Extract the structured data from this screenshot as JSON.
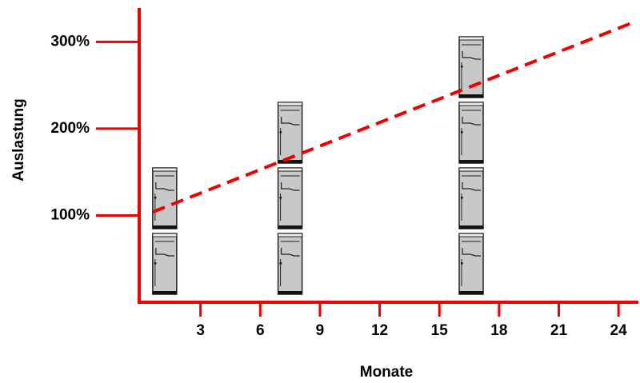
{
  "chart_data": {
    "type": "line",
    "xlabel": "Monate",
    "ylabel": "Auslastung",
    "xlim": [
      0,
      25
    ],
    "ylim": [
      0,
      339
    ],
    "xticks": [
      3,
      6,
      9,
      12,
      15,
      18,
      21,
      24
    ],
    "yticks": [
      {
        "value": 100,
        "label": "100%"
      },
      {
        "value": 200,
        "label": "200%"
      },
      {
        "value": 300,
        "label": "300%"
      }
    ],
    "axis_color": "#ee0000",
    "series": [
      {
        "color": "#ee0000",
        "x": [
          0.6,
          24.7
        ],
        "values": [
          104,
          322
        ]
      }
    ],
    "server_stacks": {
      "x": [
        1.2,
        7.5,
        16.6
      ],
      "counts": [
        2,
        3,
        4
      ]
    }
  }
}
